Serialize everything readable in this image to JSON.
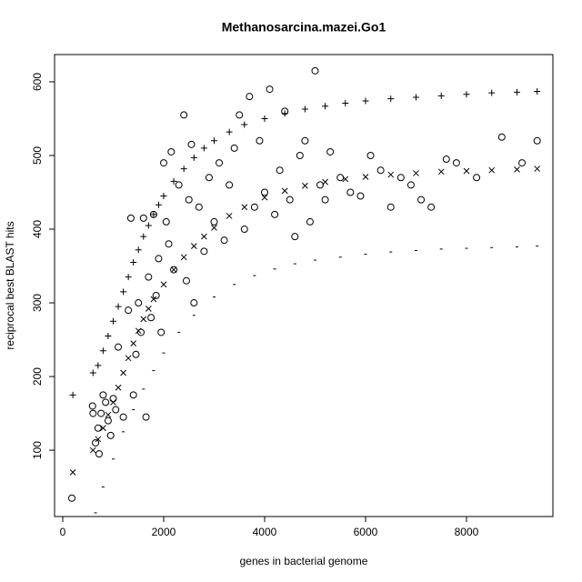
{
  "chart_data": {
    "type": "scatter",
    "title": "Methanosarcina.mazei.Go1",
    "x_label": "genes in bacterial genome",
    "y_label": "reciprocal best BLAST hits",
    "xlim": [
      -162,
      9712
    ],
    "ylim": [
      10,
      637
    ],
    "xticks": [
      0,
      2000,
      4000,
      6000,
      8000
    ],
    "yticks": [
      100,
      200,
      300,
      400,
      500,
      600
    ],
    "grid": false,
    "series": [
      {
        "marker": "circle",
        "color": "#000000",
        "x": [
          180,
          590,
          600,
          650,
          700,
          720,
          760,
          800,
          850,
          900,
          950,
          1000,
          1050,
          1100,
          1200,
          1300,
          1350,
          1400,
          1450,
          1500,
          1550,
          1600,
          1650,
          1700,
          1750,
          1800,
          1850,
          1900,
          1950,
          2000,
          2050,
          2100,
          2150,
          2200,
          2300,
          2400,
          2450,
          2500,
          2550,
          2600,
          2700,
          2800,
          2900,
          3000,
          3100,
          3200,
          3300,
          3400,
          3500,
          3600,
          3700,
          3800,
          3900,
          4000,
          4100,
          4200,
          4300,
          4400,
          4500,
          4600,
          4700,
          4800,
          4900,
          5000,
          5100,
          5200,
          5300,
          5500,
          5700,
          5900,
          6100,
          6300,
          6500,
          6700,
          6900,
          7100,
          7300,
          7600,
          7800,
          8200,
          8700,
          9100,
          9400
        ],
        "values": [
          35,
          160,
          150,
          110,
          130,
          95,
          150,
          175,
          165,
          140,
          120,
          170,
          155,
          240,
          145,
          290,
          415,
          175,
          230,
          300,
          260,
          415,
          145,
          335,
          280,
          420,
          310,
          360,
          260,
          490,
          410,
          380,
          505,
          345,
          460,
          555,
          330,
          440,
          515,
          300,
          430,
          370,
          470,
          410,
          490,
          385,
          460,
          510,
          555,
          400,
          580,
          430,
          520,
          450,
          590,
          420,
          480,
          560,
          440,
          390,
          500,
          520,
          410,
          615,
          460,
          440,
          505,
          470,
          450,
          445,
          500,
          480,
          430,
          470,
          460,
          440,
          430,
          495,
          490,
          470,
          525,
          490,
          520
        ]
      },
      {
        "marker": "plus",
        "color": "#000000",
        "x": [
          200,
          600,
          700,
          800,
          900,
          1000,
          1100,
          1200,
          1300,
          1400,
          1500,
          1600,
          1700,
          1800,
          1900,
          2000,
          2200,
          2400,
          2600,
          2800,
          3000,
          3300,
          3600,
          4000,
          4400,
          4800,
          5200,
          5600,
          6000,
          6500,
          7000,
          7500,
          8000,
          8500,
          9000,
          9400
        ],
        "values": [
          175,
          205,
          215,
          235,
          255,
          275,
          295,
          315,
          335,
          355,
          372,
          390,
          405,
          420,
          433,
          445,
          465,
          482,
          497,
          510,
          520,
          532,
          542,
          550,
          557,
          563,
          567,
          571,
          574,
          577,
          579,
          581,
          583,
          585,
          586,
          587
        ]
      },
      {
        "marker": "cross",
        "color": "#000000",
        "x": [
          200,
          600,
          700,
          800,
          900,
          1000,
          1100,
          1200,
          1300,
          1400,
          1500,
          1600,
          1700,
          1800,
          2000,
          2200,
          2400,
          2600,
          2800,
          3000,
          3300,
          3600,
          4000,
          4400,
          4800,
          5200,
          5600,
          6000,
          6500,
          7000,
          7500,
          8000,
          8500,
          9000,
          9400
        ],
        "values": [
          70,
          100,
          115,
          130,
          148,
          165,
          185,
          205,
          225,
          245,
          262,
          278,
          292,
          305,
          325,
          345,
          362,
          377,
          390,
          402,
          418,
          430,
          443,
          452,
          459,
          464,
          468,
          471,
          474,
          476,
          478,
          479,
          480,
          481,
          482
        ]
      },
      {
        "marker": "dash",
        "color": "#000000",
        "x": [
          650,
          800,
          1000,
          1200,
          1400,
          1600,
          1800,
          2000,
          2300,
          2600,
          3000,
          3400,
          3800,
          4200,
          4600,
          5000,
          5500,
          6000,
          6500,
          7000,
          7500,
          8000,
          8500,
          9000,
          9400
        ],
        "values": [
          15,
          50,
          88,
          125,
          155,
          183,
          208,
          232,
          260,
          283,
          308,
          325,
          337,
          346,
          353,
          358,
          362,
          366,
          369,
          371,
          373,
          374,
          375,
          376,
          377
        ]
      }
    ]
  }
}
